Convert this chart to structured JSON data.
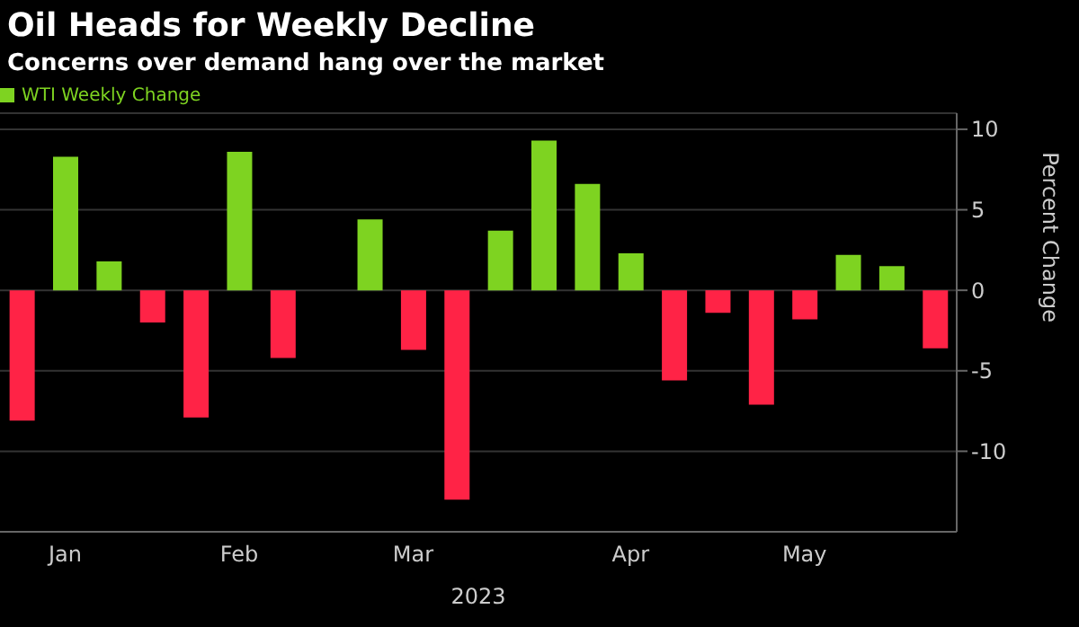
{
  "chart_data": {
    "type": "bar",
    "title": "Oil Heads for Weekly Decline",
    "subtitle": "Concerns over demand hang over the market",
    "xlabel": "2023",
    "ylabel": "Percent Change",
    "categories": [
      null,
      "Jan",
      null,
      null,
      null,
      "Feb",
      null,
      null,
      null,
      "Mar",
      null,
      null,
      null,
      null,
      "Apr",
      null,
      null,
      null,
      "May",
      null,
      null,
      null
    ],
    "series": [
      {
        "name": "WTI Weekly Change",
        "color": "#7ed321",
        "values": [
          -8.1,
          8.3,
          1.8,
          -2.0,
          -7.9,
          8.6,
          -4.2,
          0,
          4.4,
          -3.7,
          -13.0,
          3.7,
          9.3,
          6.6,
          2.3,
          -5.6,
          -1.4,
          -7.1,
          -1.8,
          2.2,
          1.5,
          -3.6
        ],
        "colors": [
          "#ff2346",
          "#7ed321",
          "#7ed321",
          "#ff2346",
          "#ff2346",
          "#7ed321",
          "#ff2346",
          "#ff2346",
          "#7ed321",
          "#ff2346",
          "#ff2346",
          "#7ed321",
          "#7ed321",
          "#7ed321",
          "#7ed321",
          "#ff2346",
          "#ff2346",
          "#ff2346",
          "#ff2346",
          "#7ed321",
          "#7ed321",
          "#ff2346"
        ]
      }
    ],
    "ylim": [
      -15,
      11
    ],
    "yticks": [
      -10,
      -5,
      0,
      5,
      10
    ],
    "grid": "y",
    "legend": "top left"
  }
}
